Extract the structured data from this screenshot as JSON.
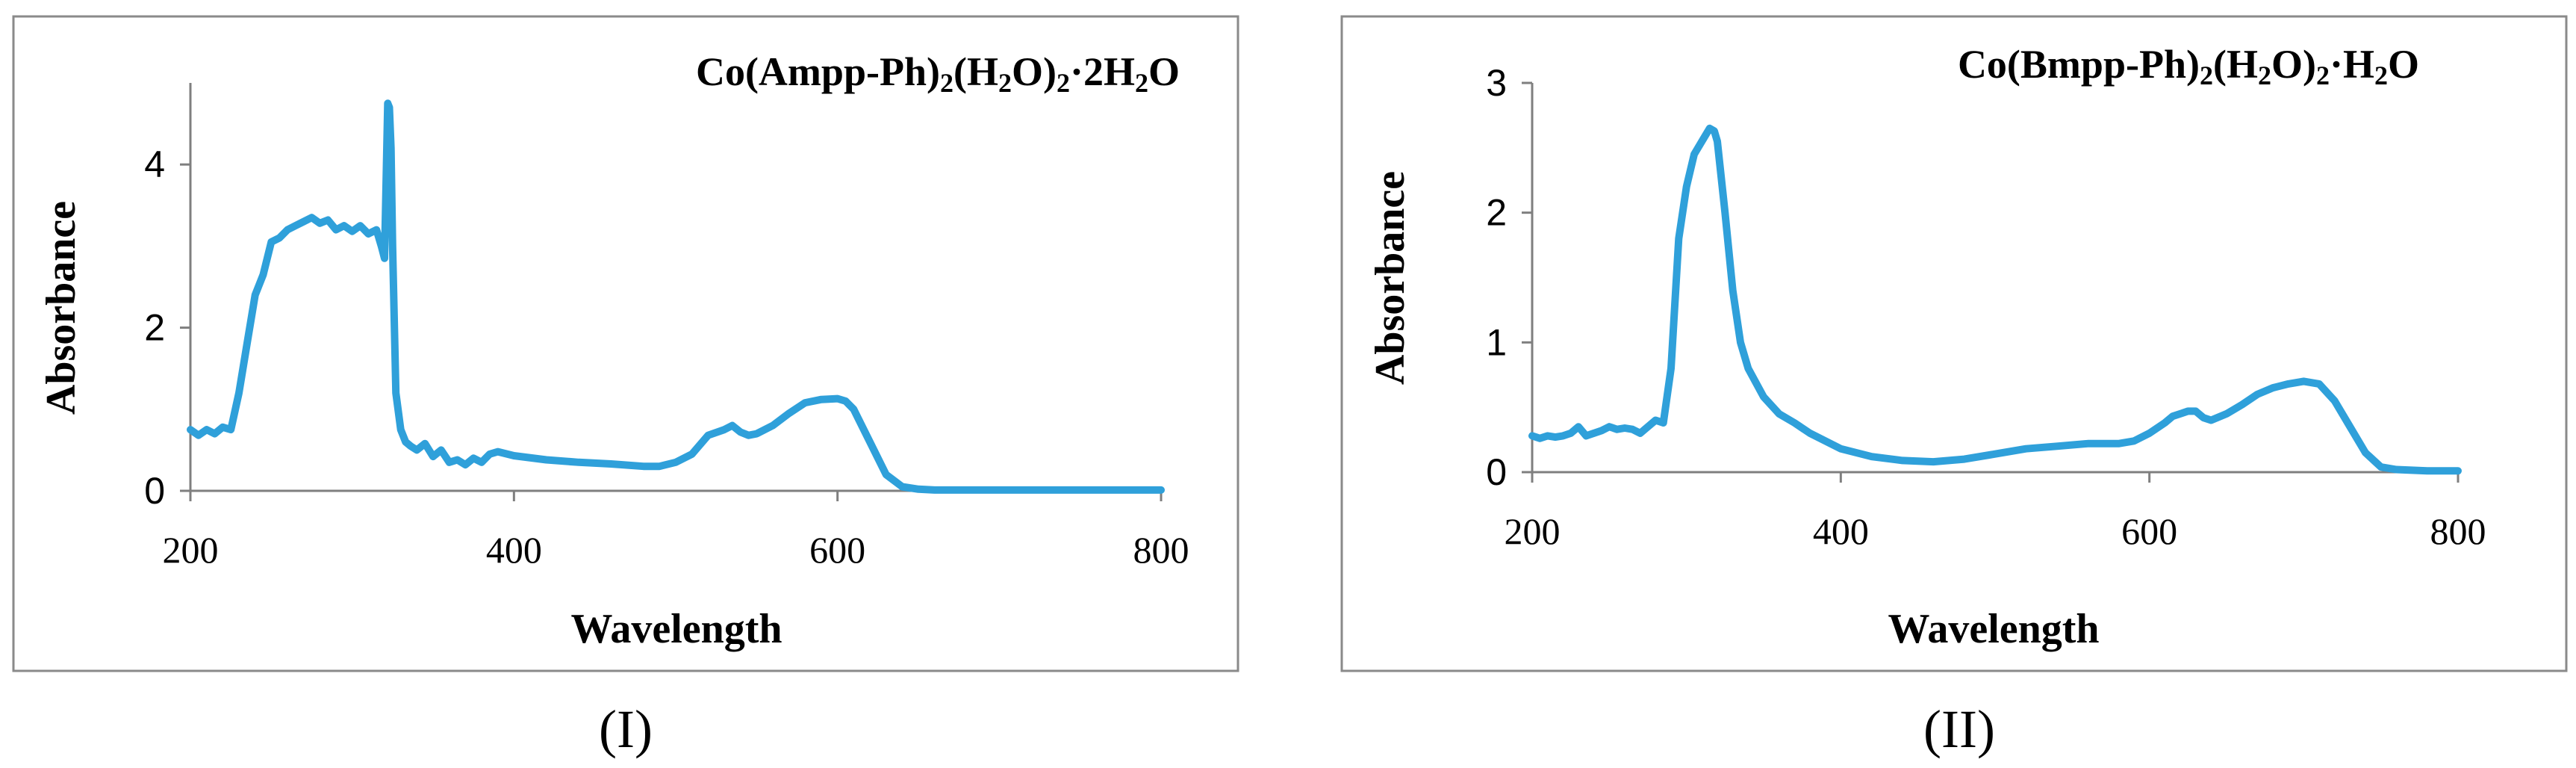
{
  "chart_data": [
    {
      "type": "line",
      "title": "Co(Ampp-Ph)₂(H₂O)₂·2H₂O",
      "title_parts": [
        {
          "t": "Co(Ampp-Ph)",
          "sub": false
        },
        {
          "t": "2",
          "sub": true
        },
        {
          "t": "(H",
          "sub": false
        },
        {
          "t": "2",
          "sub": true
        },
        {
          "t": "O)",
          "sub": false
        },
        {
          "t": "2",
          "sub": true
        },
        {
          "t": "·2H",
          "sub": false
        },
        {
          "t": "2",
          "sub": true
        },
        {
          "t": "O",
          "sub": false
        }
      ],
      "xlabel": "Wavelength",
      "ylabel": "Absorbance",
      "panel_label": "(I)",
      "xlim": [
        200,
        800
      ],
      "ylim": [
        0,
        5
      ],
      "xticks": [
        200,
        400,
        600,
        800
      ],
      "yticks": [
        0,
        2,
        4
      ],
      "grid": false,
      "legend": "none",
      "series": [
        {
          "color": "#2fa0da",
          "x": [
            200,
            205,
            210,
            215,
            220,
            225,
            230,
            235,
            240,
            245,
            250,
            255,
            260,
            265,
            270,
            275,
            280,
            285,
            290,
            295,
            300,
            305,
            310,
            315,
            318,
            320,
            322,
            323,
            324,
            325,
            327,
            330,
            333,
            336,
            340,
            345,
            350,
            355,
            360,
            365,
            370,
            375,
            380,
            385,
            390,
            400,
            420,
            440,
            460,
            480,
            490,
            500,
            510,
            520,
            530,
            535,
            540,
            545,
            550,
            560,
            570,
            580,
            590,
            600,
            605,
            610,
            620,
            630,
            640,
            650,
            660,
            680,
            700,
            750,
            800
          ],
          "y": [
            0.75,
            0.68,
            0.75,
            0.7,
            0.78,
            0.75,
            1.2,
            1.8,
            2.4,
            2.65,
            3.05,
            3.1,
            3.2,
            3.25,
            3.3,
            3.35,
            3.28,
            3.32,
            3.2,
            3.25,
            3.18,
            3.25,
            3.15,
            3.2,
            3.0,
            2.85,
            4.75,
            4.7,
            4.2,
            3.0,
            1.2,
            0.75,
            0.6,
            0.55,
            0.5,
            0.58,
            0.42,
            0.5,
            0.35,
            0.38,
            0.32,
            0.4,
            0.35,
            0.45,
            0.48,
            0.43,
            0.38,
            0.35,
            0.33,
            0.3,
            0.3,
            0.35,
            0.45,
            0.68,
            0.75,
            0.8,
            0.72,
            0.68,
            0.7,
            0.8,
            0.95,
            1.08,
            1.12,
            1.13,
            1.1,
            1.0,
            0.6,
            0.2,
            0.05,
            0.02,
            0.01,
            0.01,
            0.01,
            0.01,
            0.01
          ]
        }
      ]
    },
    {
      "type": "line",
      "title": "Co(Bmpp-Ph)₂(H₂O)₂·H₂O",
      "title_parts": [
        {
          "t": "Co(Bmpp-Ph)",
          "sub": false
        },
        {
          "t": "2",
          "sub": true
        },
        {
          "t": "(H",
          "sub": false
        },
        {
          "t": "2",
          "sub": true
        },
        {
          "t": "O)",
          "sub": false
        },
        {
          "t": "2",
          "sub": true
        },
        {
          "t": "·H",
          "sub": false
        },
        {
          "t": "2",
          "sub": true
        },
        {
          "t": "O",
          "sub": false
        }
      ],
      "xlabel": "Wavelength",
      "ylabel": "Absorbance",
      "panel_label": "(II)",
      "xlim": [
        200,
        800
      ],
      "ylim": [
        0,
        3
      ],
      "xticks": [
        200,
        400,
        600,
        800
      ],
      "yticks": [
        0,
        1,
        2,
        3
      ],
      "grid": false,
      "legend": "none",
      "series": [
        {
          "color": "#2fa0da",
          "x": [
            200,
            205,
            210,
            215,
            220,
            225,
            230,
            235,
            240,
            245,
            250,
            255,
            260,
            265,
            270,
            275,
            280,
            285,
            290,
            295,
            300,
            305,
            310,
            315,
            318,
            320,
            325,
            330,
            335,
            340,
            350,
            360,
            370,
            380,
            400,
            420,
            440,
            460,
            480,
            500,
            520,
            540,
            560,
            580,
            590,
            600,
            610,
            615,
            620,
            625,
            630,
            635,
            640,
            650,
            660,
            670,
            680,
            690,
            700,
            710,
            720,
            730,
            740,
            750,
            760,
            780,
            800
          ],
          "y": [
            0.28,
            0.26,
            0.28,
            0.27,
            0.28,
            0.3,
            0.35,
            0.28,
            0.3,
            0.32,
            0.35,
            0.33,
            0.34,
            0.33,
            0.3,
            0.35,
            0.4,
            0.38,
            0.8,
            1.8,
            2.2,
            2.45,
            2.55,
            2.65,
            2.63,
            2.55,
            2.0,
            1.4,
            1.0,
            0.8,
            0.58,
            0.45,
            0.38,
            0.3,
            0.18,
            0.12,
            0.09,
            0.08,
            0.1,
            0.14,
            0.18,
            0.2,
            0.22,
            0.22,
            0.24,
            0.3,
            0.38,
            0.43,
            0.45,
            0.47,
            0.47,
            0.42,
            0.4,
            0.45,
            0.52,
            0.6,
            0.65,
            0.68,
            0.7,
            0.68,
            0.55,
            0.35,
            0.15,
            0.04,
            0.02,
            0.01,
            0.01
          ]
        }
      ]
    }
  ]
}
